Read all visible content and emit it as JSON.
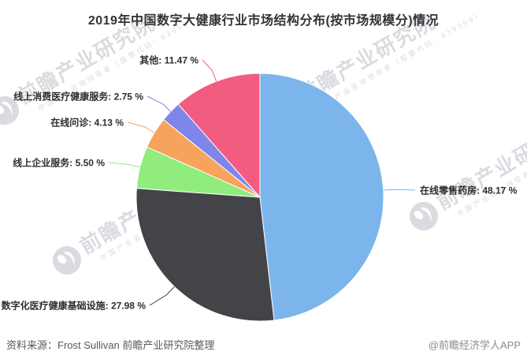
{
  "title": "2019年中国数字大健康行业市场结构分布(按市场规模分)情况",
  "footer": {
    "source": "资料来源：Frost Sullivan 前瞻产业研究院整理",
    "credit": "@前瞻经济学人APP"
  },
  "watermark": {
    "brand": "前瞻产业研究院",
    "tagline": "中国产业咨询领导者（股票代码：839599）"
  },
  "chart_data": {
    "type": "pie",
    "title": "2019年中国数字大健康行业市场结构分布(按市场规模分)情况",
    "value_unit": "%",
    "label_format": "{name}: {percent} %",
    "legend": "none",
    "start_angle_deg": 0,
    "direction": "clockwise",
    "slices": [
      {
        "name": "在线零售药房",
        "percent": 48.17,
        "display": "48.17",
        "color": "#7cb5ec"
      },
      {
        "name": "数字化医疗健康基础设施",
        "percent": 27.98,
        "display": "27.98",
        "color": "#434348"
      },
      {
        "name": "线上企业服务",
        "percent": 5.5,
        "display": "5.50",
        "color": "#90ed7d"
      },
      {
        "name": "在线问诊",
        "percent": 4.13,
        "display": "4.13",
        "color": "#f7a35c"
      },
      {
        "name": "线上消费医疗健康服务",
        "percent": 2.75,
        "display": "2.75",
        "color": "#8085e9"
      },
      {
        "name": "其他",
        "percent": 11.47,
        "display": "11.47",
        "color": "#f15c80"
      }
    ]
  }
}
